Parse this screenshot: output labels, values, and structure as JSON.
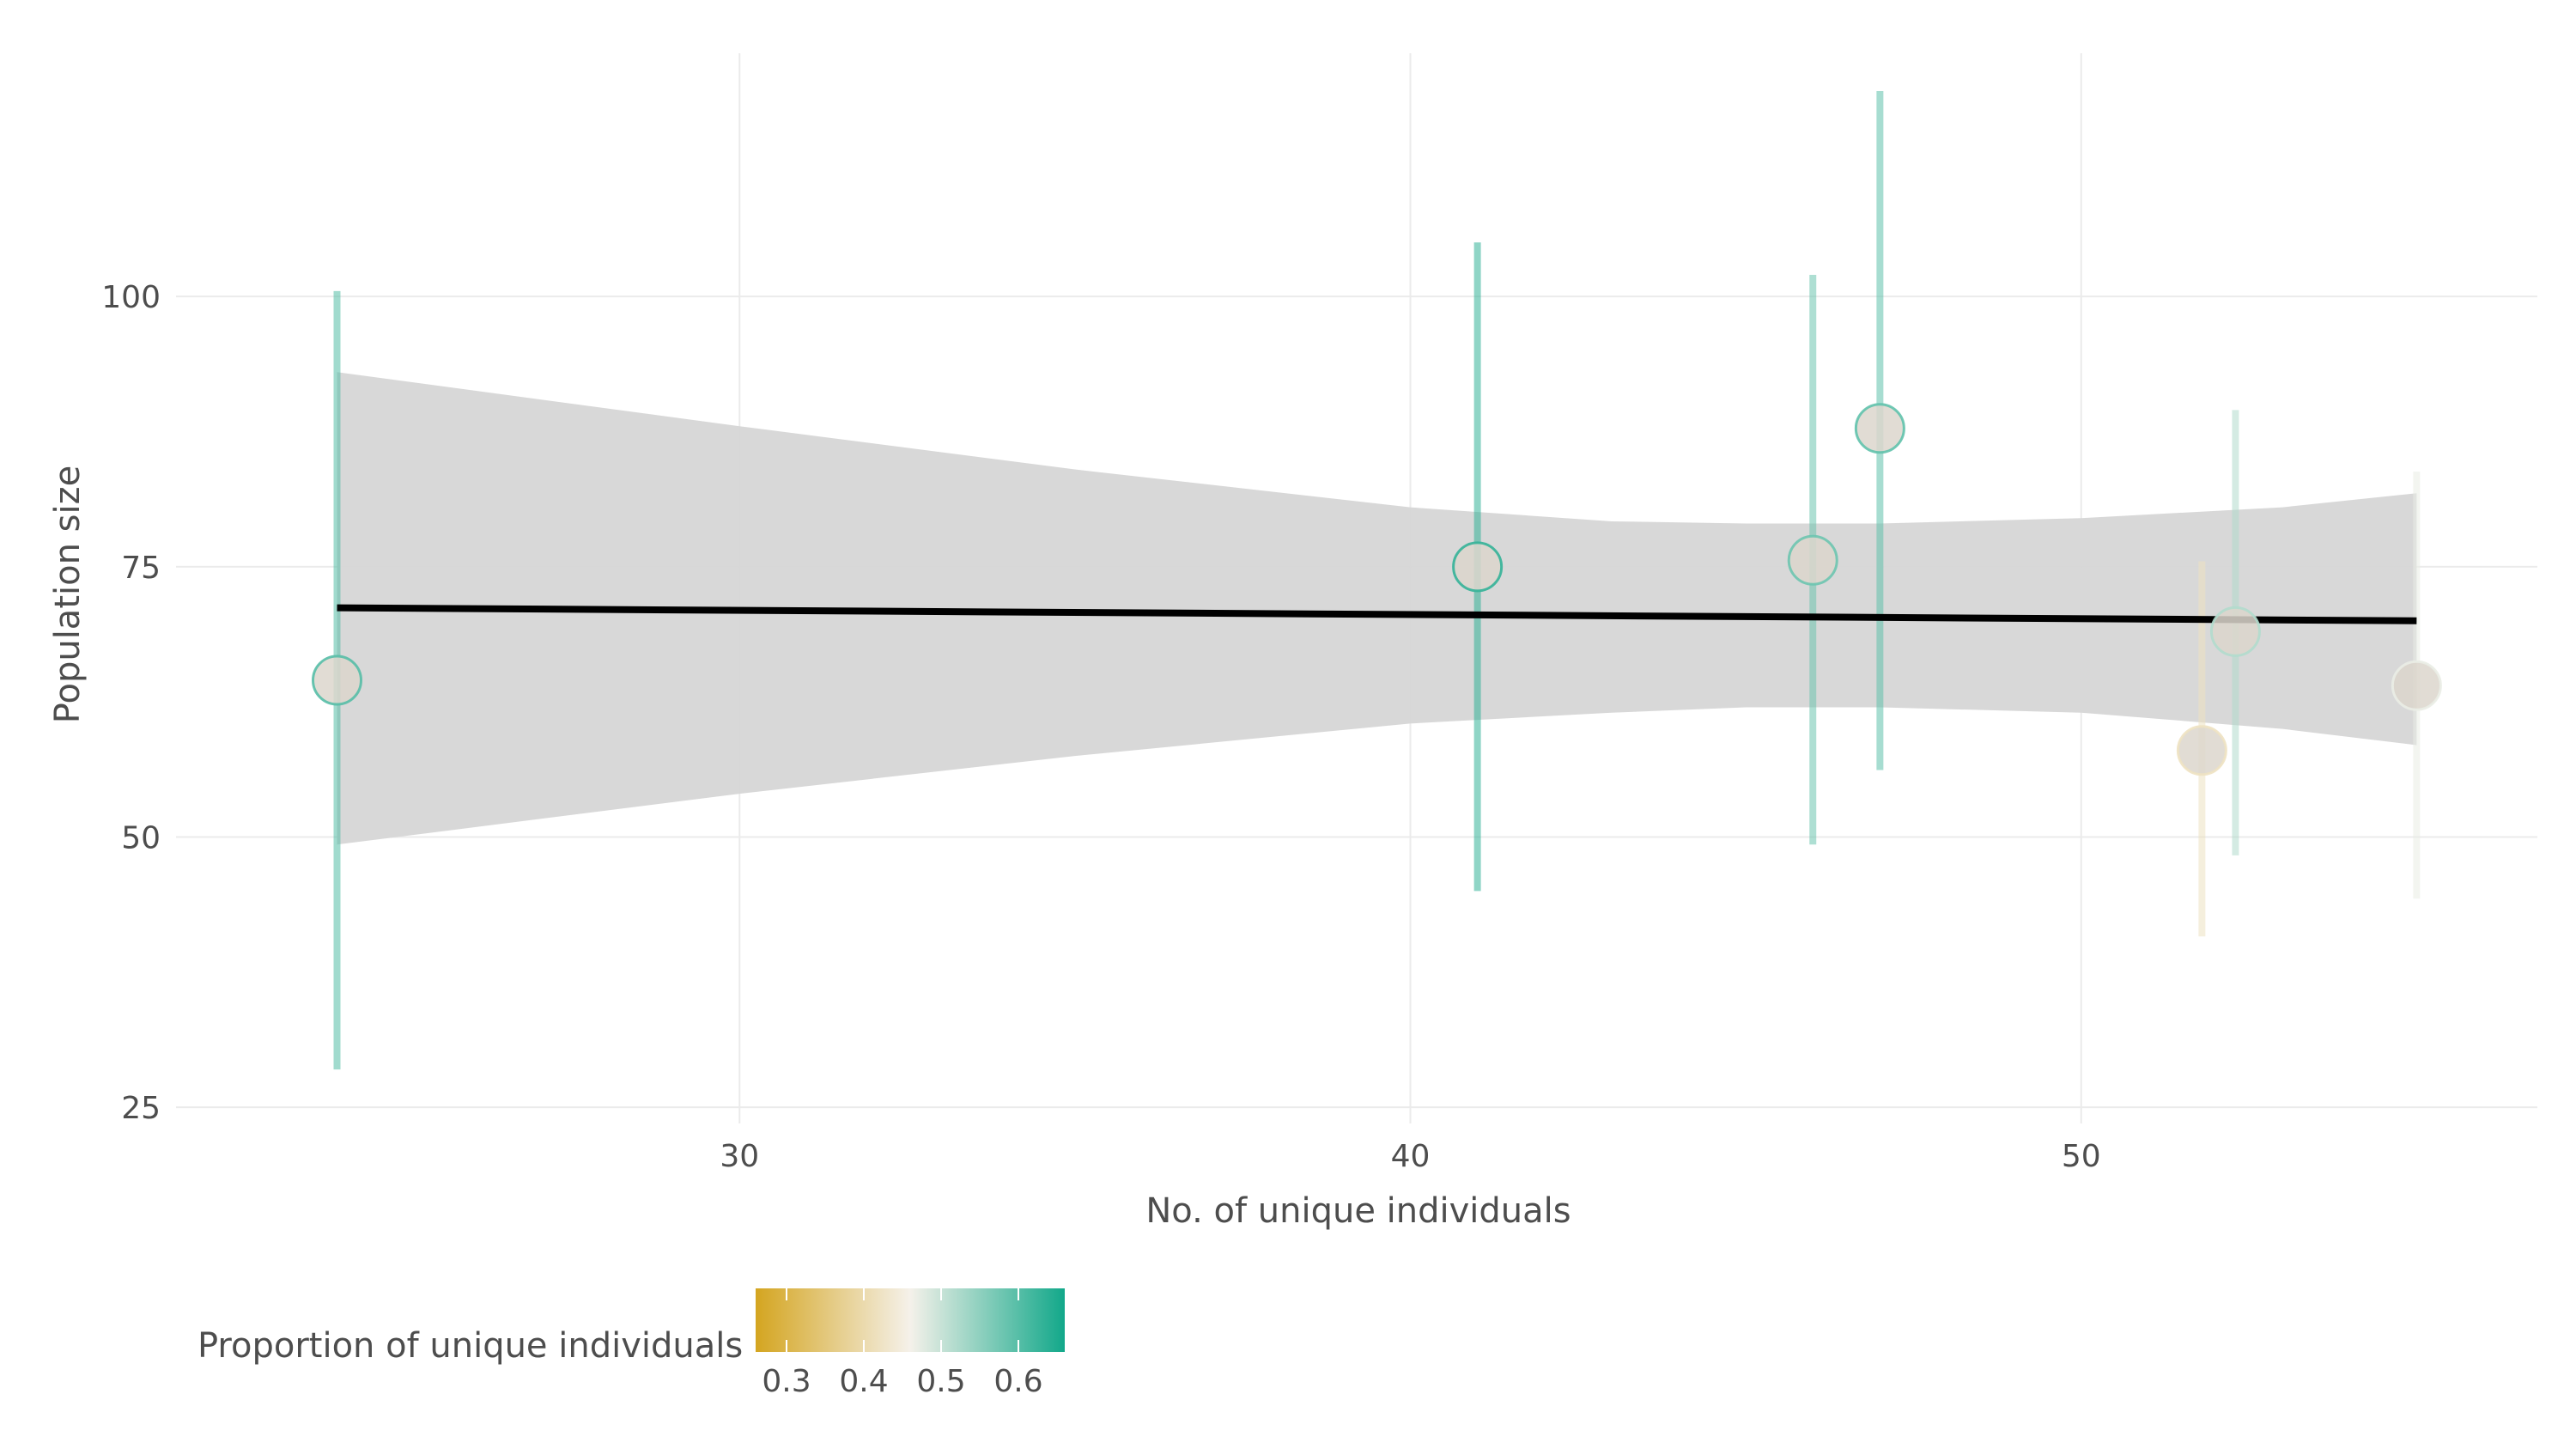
{
  "chart_data": {
    "type": "scatter",
    "xlabel": "No. of unique individuals",
    "ylabel": "Population size",
    "xlim": [
      21.6,
      56.8
    ],
    "ylim": [
      23.5,
      122.5
    ],
    "x_ticks": [
      30,
      40,
      50
    ],
    "y_ticks": [
      25,
      50,
      75,
      100
    ],
    "grid": true,
    "points": [
      {
        "x": 24,
        "y": 64.5,
        "lower": 28.5,
        "upper": 100.5,
        "proportion": 0.6
      },
      {
        "x": 41,
        "y": 75.0,
        "lower": 45.0,
        "upper": 105.0,
        "proportion": 0.63
      },
      {
        "x": 46,
        "y": 75.6,
        "lower": 49.3,
        "upper": 102.0,
        "proportion": 0.58
      },
      {
        "x": 47,
        "y": 87.8,
        "lower": 56.2,
        "upper": 119.0,
        "proportion": 0.59
      },
      {
        "x": 51.8,
        "y": 58.0,
        "lower": 40.8,
        "upper": 75.5,
        "proportion": 0.42
      },
      {
        "x": 52.3,
        "y": 69.0,
        "lower": 48.3,
        "upper": 89.5,
        "proportion": 0.52
      },
      {
        "x": 55,
        "y": 64.0,
        "lower": 44.3,
        "upper": 83.8,
        "proportion": 0.47
      }
    ],
    "fit_line": {
      "x": [
        24,
        55
      ],
      "y": [
        71.2,
        70.0
      ]
    },
    "confidence_band": {
      "x": [
        24,
        30,
        35,
        40,
        43,
        45,
        47,
        50,
        53,
        55
      ],
      "lower": [
        49.3,
        54.0,
        57.5,
        60.5,
        61.5,
        62.0,
        62.0,
        61.5,
        60.0,
        58.5
      ],
      "upper": [
        93.0,
        88.0,
        84.0,
        80.5,
        79.2,
        79.0,
        79.0,
        79.5,
        80.5,
        81.8
      ]
    },
    "legend": {
      "title": "Proportion of unique individuals",
      "position": "bottom-left",
      "range": [
        0.26,
        0.66
      ],
      "ticks": [
        0.3,
        0.4,
        0.5,
        0.6
      ],
      "tick_labels": [
        "0.3",
        "0.4",
        "0.5",
        "0.6"
      ]
    }
  },
  "colors": {
    "low": "#d4a520",
    "mid": "#f5f1ea",
    "high": "#12a88a",
    "band": "#d6d6d6",
    "line": "#000000",
    "point_fill": "#dcd6cc",
    "grid": "#ebebeb",
    "text": "#4d4d4d"
  }
}
